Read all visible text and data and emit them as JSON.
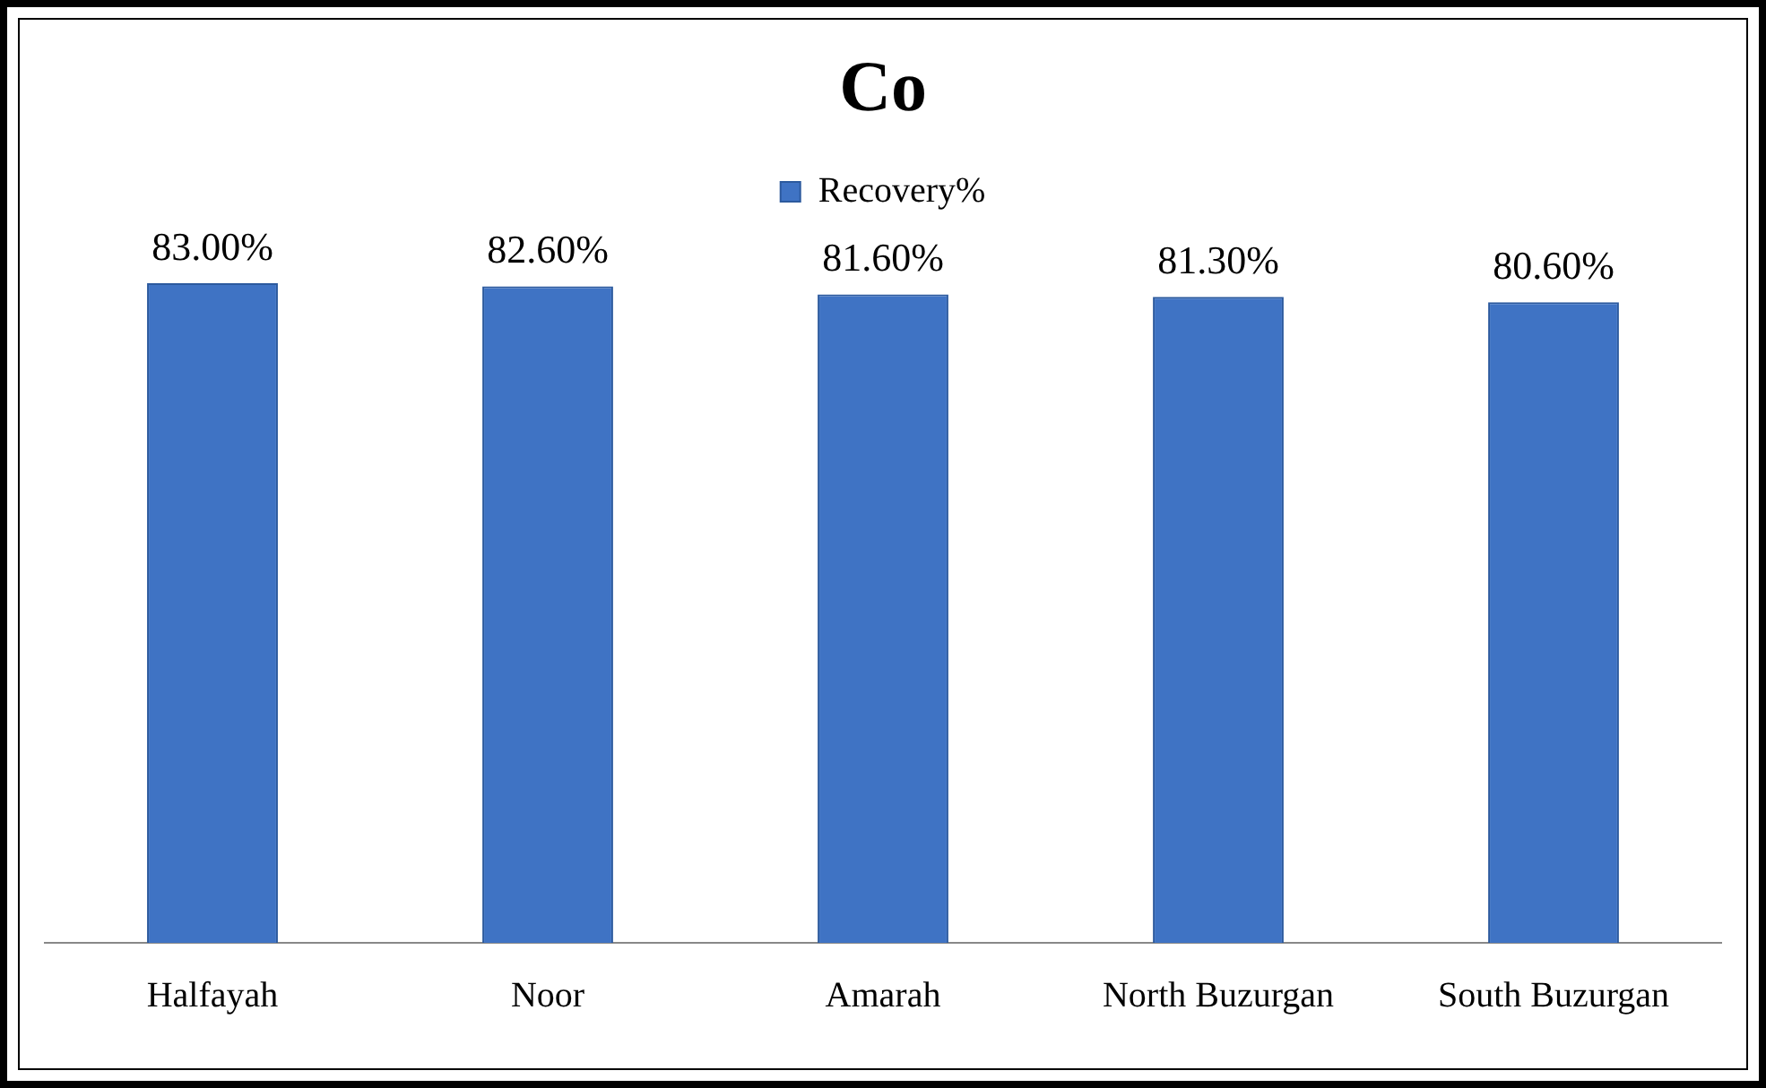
{
  "chart_data": {
    "type": "bar",
    "title": "Co",
    "categories": [
      "Halfayah",
      "Noor",
      "Amarah",
      "North Buzurgan",
      "South Buzurgan"
    ],
    "series": [
      {
        "name": "Recovery%",
        "color": "#3f73c4",
        "values": [
          83.0,
          82.6,
          81.6,
          81.3,
          80.6
        ],
        "value_labels": [
          "83.00%",
          "82.60%",
          "81.60%",
          "81.30%",
          "80.60%"
        ]
      }
    ],
    "tick_labels": "x",
    "grid": false,
    "legend": "top"
  }
}
